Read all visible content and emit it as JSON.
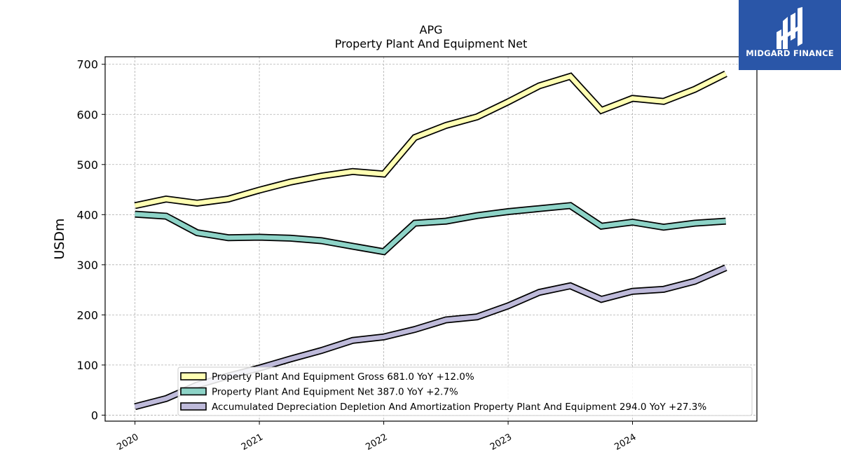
{
  "chart_data": {
    "type": "line",
    "title": "APG",
    "subtitle": "Property Plant And Equipment Net",
    "xlabel": "",
    "ylabel": "USDm",
    "ylim": [
      -12,
      715
    ],
    "xlim": [
      2019.76,
      2025.0
    ],
    "grid": true,
    "legend_position": "bottom-right",
    "yticks": [
      0,
      100,
      200,
      300,
      400,
      500,
      600,
      700
    ],
    "xticks": [
      {
        "value": 2020,
        "label": "2020"
      },
      {
        "value": 2021,
        "label": "2021"
      },
      {
        "value": 2022,
        "label": "2022"
      },
      {
        "value": 2023,
        "label": "2023"
      },
      {
        "value": 2024,
        "label": "2024"
      }
    ],
    "x": [
      2020.0,
      2020.25,
      2020.5,
      2020.75,
      2021.0,
      2021.25,
      2021.5,
      2021.75,
      2022.0,
      2022.25,
      2022.5,
      2022.75,
      2023.0,
      2023.25,
      2023.5,
      2023.75,
      2024.0,
      2024.25,
      2024.5,
      2024.75
    ],
    "series": [
      {
        "name": "Property Plant And Equipment Gross",
        "legend_label": "Property Plant And Equipment Gross  681.0 YoY +12.0%",
        "color": "#ffffb3",
        "values": [
          418,
          431,
          423,
          431,
          449,
          465,
          477,
          486,
          481,
          554,
          578,
          595,
          625,
          657,
          676,
          608,
          632,
          626,
          650,
          681
        ]
      },
      {
        "name": "Property Plant And Equipment Net",
        "legend_label": "Property Plant And Equipment Net  387.0 YoY +2.7%",
        "color": "#8dd3c7",
        "values": [
          401,
          397,
          364,
          354,
          355,
          353,
          348,
          337,
          326,
          383,
          387,
          398,
          406,
          412,
          418,
          377,
          385,
          375,
          383,
          387
        ]
      },
      {
        "name": "Accumulated Depreciation Depletion And Amortization Property Plant And Equipment",
        "legend_label": "Accumulated Depreciation Depletion And Amortization Property Plant And Equipment  294.0 YoY +27.3%",
        "color": "#bebada",
        "values": [
          17,
          33,
          60,
          78,
          94,
          112,
          129,
          149,
          156,
          171,
          190,
          196,
          218,
          245,
          258,
          231,
          247,
          251,
          267,
          294
        ]
      }
    ]
  },
  "logo": {
    "text": "MIDGARD FINANCE",
    "icon": "midgard-mark-icon",
    "background": "#2a56a8"
  }
}
